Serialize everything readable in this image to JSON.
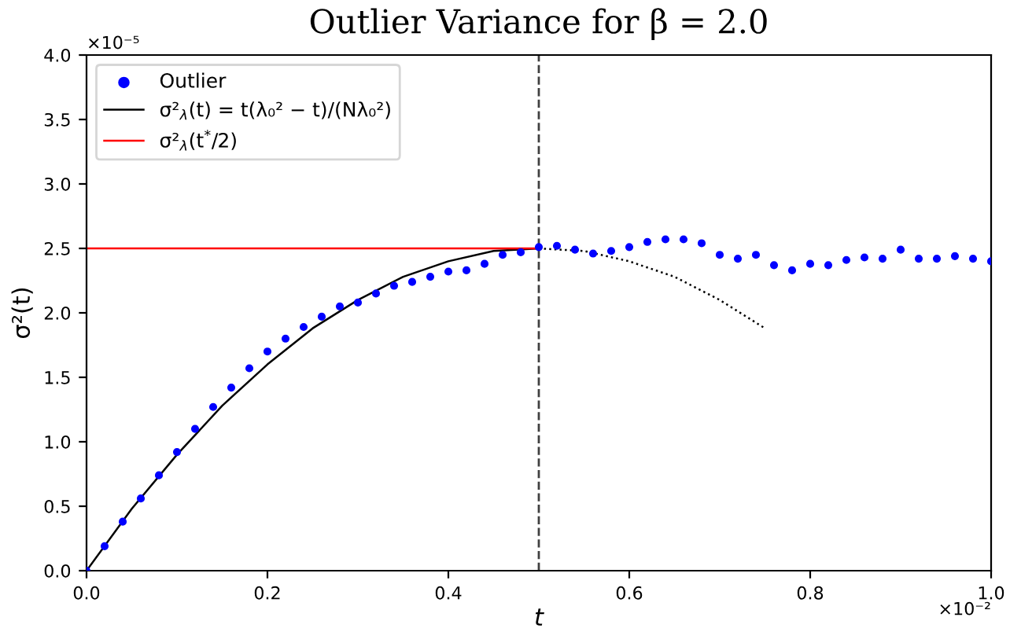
{
  "chart_data": {
    "type": "scatter",
    "title": "Outlier Variance for β = 2.0",
    "xlabel": "t",
    "ylabel": "σ²(t)",
    "xlim": [
      0,
      1.0
    ],
    "ylim": [
      0,
      4.0
    ],
    "xticks": [
      {
        "value": 0,
        "label": "0.0"
      },
      0.2,
      0.4,
      0.6,
      0.8,
      {
        "value": 1,
        "label": "1.0"
      }
    ],
    "yticks": [
      {
        "value": 0,
        "label": "0.0"
      },
      0.5,
      {
        "value": 1,
        "label": "1.0"
      },
      1.5,
      {
        "value": 2,
        "label": "2.0"
      },
      2.5,
      {
        "value": 3,
        "label": "3.0"
      },
      3.5,
      {
        "value": 4,
        "label": "4.0"
      }
    ],
    "annotations": [
      "×10⁻²",
      "×10⁻⁵"
    ],
    "legend": "top left",
    "ref_lines": [
      {
        "axis": "x",
        "value": 0.5,
        "label": null,
        "color": "#404040",
        "line_style": "dashed"
      }
    ],
    "series": [
      {
        "name": "Outlier",
        "marker": "circle",
        "color": "#0000ff",
        "x": [
          0,
          0.02,
          0.04,
          0.06,
          0.08,
          0.1,
          0.12,
          0.14,
          0.16,
          0.18,
          0.2,
          0.22,
          0.24,
          0.26,
          0.28,
          0.3,
          0.32,
          0.34,
          0.36,
          0.38,
          0.4,
          0.42,
          0.44,
          0.46,
          0.48,
          0.5,
          0.52,
          0.54,
          0.56,
          0.58,
          0.6,
          0.62,
          0.64,
          0.66,
          0.68,
          0.7,
          0.72,
          0.74,
          0.76,
          0.78,
          0.8,
          0.82,
          0.84,
          0.86,
          0.88,
          0.9,
          0.92,
          0.94,
          0.96,
          0.98,
          1.0
        ],
        "values": [
          0,
          0.19,
          0.38,
          0.56,
          0.74,
          0.92,
          1.1,
          1.27,
          1.42,
          1.57,
          1.7,
          1.8,
          1.89,
          1.97,
          2.05,
          2.08,
          2.15,
          2.21,
          2.24,
          2.28,
          2.32,
          2.33,
          2.38,
          2.45,
          2.47,
          2.51,
          2.52,
          2.49,
          2.46,
          2.48,
          2.51,
          2.55,
          2.57,
          2.57,
          2.54,
          2.45,
          2.42,
          2.45,
          2.37,
          2.33,
          2.38,
          2.37,
          2.41,
          2.43,
          2.42,
          2.49,
          2.42,
          2.42,
          2.44,
          2.42,
          2.4
        ]
      },
      {
        "name": "σ²$_{λ}$(t) = t(λ₀² − t)/(Nλ₀²)",
        "type": "line",
        "line_style": "solid",
        "color": "#000000",
        "x": [
          0,
          0.05,
          0.1,
          0.15,
          0.2,
          0.25,
          0.3,
          0.35,
          0.4,
          0.45,
          0.5
        ],
        "values": [
          0,
          0.48,
          0.9,
          1.28,
          1.6,
          1.88,
          2.1,
          2.28,
          2.4,
          2.48,
          2.5
        ]
      },
      {
        "type": "line",
        "line_style": "dotted",
        "color": "#000000",
        "x": [
          0.5,
          0.55,
          0.6,
          0.65,
          0.7,
          0.75
        ],
        "values": [
          2.5,
          2.48,
          2.4,
          2.28,
          2.1,
          1.88
        ]
      },
      {
        "name": "σ²$_{λ}$(t$^{*}$/2)",
        "type": "line",
        "line_style": "solid",
        "color": "#ff0000",
        "x": [
          0,
          0.5
        ],
        "values": [
          2.5,
          2.5
        ]
      }
    ]
  }
}
